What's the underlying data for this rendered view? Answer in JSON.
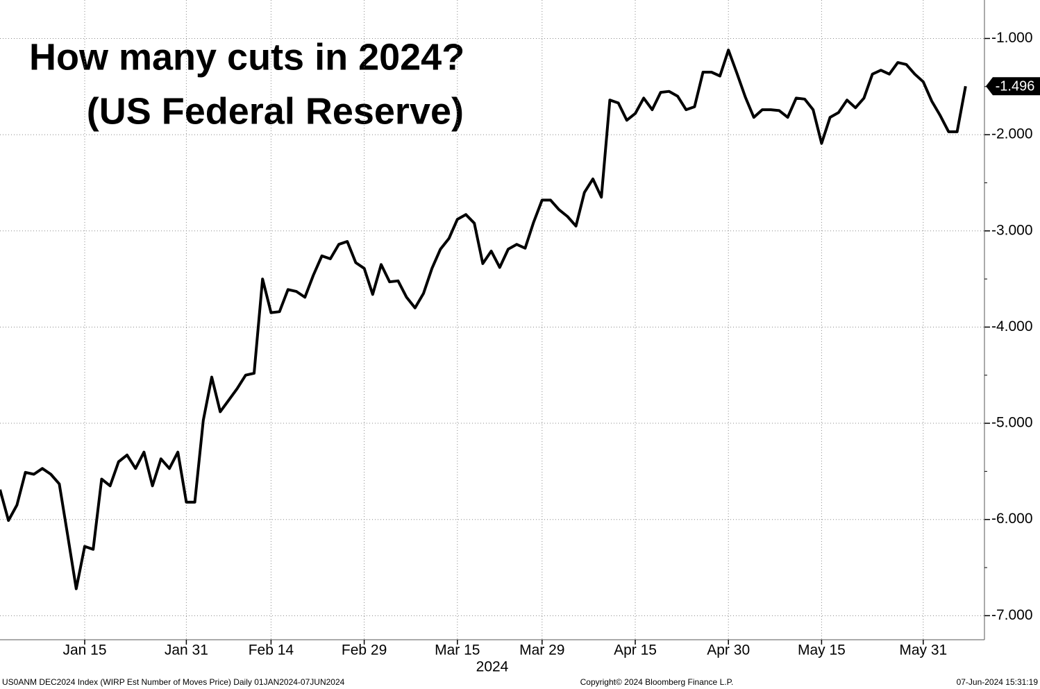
{
  "chart_data": {
    "type": "line",
    "title": "How many cuts in 2024?",
    "subtitle": "(US Federal Reserve)",
    "x_label": "2024",
    "footer_left": "US0ANM DEC2024 Index (WIRP Est Number of Moves Price)  Daily 01JAN2024-07JUN2024",
    "footer_center": "Copyright© 2024 Bloomberg Finance L.P.",
    "footer_right": "07-Jun-2024 15:31:19",
    "color": "#000000",
    "grid": true,
    "x": [
      "2024-01-01",
      "2024-01-02",
      "2024-01-03",
      "2024-01-04",
      "2024-01-05",
      "2024-01-08",
      "2024-01-09",
      "2024-01-10",
      "2024-01-11",
      "2024-01-12",
      "2024-01-15",
      "2024-01-16",
      "2024-01-17",
      "2024-01-18",
      "2024-01-19",
      "2024-01-22",
      "2024-01-23",
      "2024-01-24",
      "2024-01-25",
      "2024-01-26",
      "2024-01-29",
      "2024-01-30",
      "2024-01-31",
      "2024-02-01",
      "2024-02-02",
      "2024-02-05",
      "2024-02-06",
      "2024-02-07",
      "2024-02-08",
      "2024-02-09",
      "2024-02-12",
      "2024-02-13",
      "2024-02-14",
      "2024-02-15",
      "2024-02-16",
      "2024-02-19",
      "2024-02-20",
      "2024-02-21",
      "2024-02-22",
      "2024-02-23",
      "2024-02-26",
      "2024-02-27",
      "2024-02-28",
      "2024-02-29",
      "2024-03-01",
      "2024-03-04",
      "2024-03-05",
      "2024-03-06",
      "2024-03-07",
      "2024-03-08",
      "2024-03-11",
      "2024-03-12",
      "2024-03-13",
      "2024-03-14",
      "2024-03-15",
      "2024-03-18",
      "2024-03-19",
      "2024-03-20",
      "2024-03-21",
      "2024-03-22",
      "2024-03-25",
      "2024-03-26",
      "2024-03-27",
      "2024-03-28",
      "2024-03-29",
      "2024-04-01",
      "2024-04-02",
      "2024-04-03",
      "2024-04-04",
      "2024-04-05",
      "2024-04-08",
      "2024-04-09",
      "2024-04-10",
      "2024-04-11",
      "2024-04-12",
      "2024-04-15",
      "2024-04-16",
      "2024-04-17",
      "2024-04-18",
      "2024-04-19",
      "2024-04-22",
      "2024-04-23",
      "2024-04-24",
      "2024-04-25",
      "2024-04-26",
      "2024-04-29",
      "2024-04-30",
      "2024-05-01",
      "2024-05-02",
      "2024-05-03",
      "2024-05-06",
      "2024-05-07",
      "2024-05-08",
      "2024-05-09",
      "2024-05-10",
      "2024-05-13",
      "2024-05-14",
      "2024-05-15",
      "2024-05-16",
      "2024-05-17",
      "2024-05-20",
      "2024-05-21",
      "2024-05-22",
      "2024-05-23",
      "2024-05-24",
      "2024-05-27",
      "2024-05-28",
      "2024-05-29",
      "2024-05-30",
      "2024-05-31",
      "2024-06-03",
      "2024-06-04",
      "2024-06-05",
      "2024-06-06",
      "2024-06-07"
    ],
    "values": [
      -5.69,
      -6.01,
      -5.85,
      -5.51,
      -5.53,
      -5.47,
      -5.53,
      -5.63,
      -6.17,
      -6.72,
      -6.28,
      -6.31,
      -5.58,
      -5.65,
      -5.4,
      -5.33,
      -5.47,
      -5.3,
      -5.65,
      -5.37,
      -5.47,
      -5.3,
      -5.82,
      -5.82,
      -4.97,
      -4.52,
      -4.88,
      -4.76,
      -4.64,
      -4.5,
      -4.48,
      -3.5,
      -3.85,
      -3.84,
      -3.61,
      -3.63,
      -3.69,
      -3.46,
      -3.26,
      -3.29,
      -3.14,
      -3.11,
      -3.33,
      -3.39,
      -3.66,
      -3.35,
      -3.53,
      -3.52,
      -3.69,
      -3.8,
      -3.65,
      -3.39,
      -3.19,
      -3.08,
      -2.88,
      -2.83,
      -2.92,
      -3.34,
      -3.21,
      -3.38,
      -3.19,
      -3.14,
      -3.18,
      -2.91,
      -2.68,
      -2.68,
      -2.78,
      -2.85,
      -2.95,
      -2.6,
      -2.46,
      -2.65,
      -1.64,
      -1.67,
      -1.85,
      -1.78,
      -1.62,
      -1.74,
      -1.56,
      -1.55,
      -1.6,
      -1.74,
      -1.71,
      -1.35,
      -1.35,
      -1.39,
      -1.12,
      -1.36,
      -1.61,
      -1.82,
      -1.74,
      -1.74,
      -1.75,
      -1.82,
      -1.62,
      -1.63,
      -1.74,
      -2.09,
      -1.82,
      -1.77,
      -1.64,
      -1.72,
      -1.62,
      -1.37,
      -1.33,
      -1.37,
      -1.25,
      -1.27,
      -1.37,
      -1.45,
      -1.65,
      -1.8,
      -1.97,
      -1.97,
      -1.496
    ],
    "xticks": [
      {
        "value": "2024-01-15",
        "label": "Jan 15"
      },
      {
        "value": "2024-01-31",
        "label": "Jan 31"
      },
      {
        "value": "2024-02-14",
        "label": "Feb 14"
      },
      {
        "value": "2024-02-29",
        "label": "Feb 29"
      },
      {
        "value": "2024-03-15",
        "label": "Mar 15"
      },
      {
        "value": "2024-03-29",
        "label": "Mar 29"
      },
      {
        "value": "2024-04-15",
        "label": "Apr 15"
      },
      {
        "value": "2024-04-30",
        "label": "Apr 30"
      },
      {
        "value": "2024-05-15",
        "label": "May 15"
      },
      {
        "value": "2024-05-31",
        "label": "May 31"
      }
    ],
    "ylim": [
      -0.6,
      -7.25
    ],
    "yticks": [
      {
        "value": -1,
        "label": "-1.000"
      },
      {
        "value": -2,
        "label": "-2.000"
      },
      {
        "value": -3,
        "label": "-3.000"
      },
      {
        "value": -4,
        "label": "-4.000"
      },
      {
        "value": -5,
        "label": "-5.000"
      },
      {
        "value": -6,
        "label": "-6.000"
      },
      {
        "value": -7,
        "label": "-7.000"
      }
    ],
    "minor_yticks": [
      -1.5,
      -2.5,
      -3.5,
      -4.5,
      -5.5,
      -6.5
    ]
  }
}
